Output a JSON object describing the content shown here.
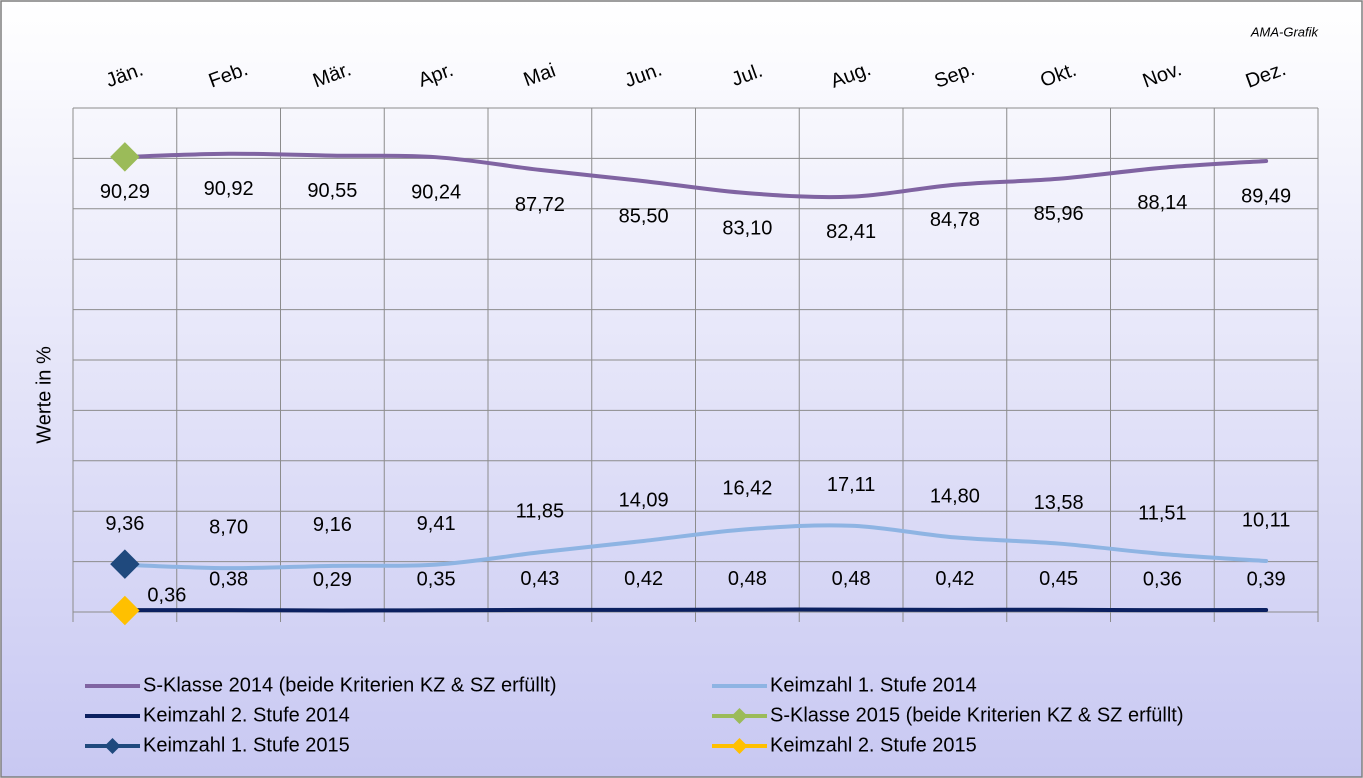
{
  "chart_data": {
    "type": "line",
    "source": "AMA-Grafik",
    "y_label": "Werte in %",
    "categories": [
      "Jän.",
      "Feb.",
      "Mär.",
      "Apr.",
      "Mai",
      "Jun.",
      "Jul.",
      "Aug.",
      "Sep.",
      "Okt.",
      "Nov.",
      "Dez."
    ],
    "series": [
      {
        "name": "S-Klasse 2014 (beide Kriterien KZ & SZ erfüllt)",
        "color": "#8064a2",
        "values": [
          90.29,
          90.92,
          90.55,
          90.24,
          87.72,
          85.5,
          83.1,
          82.41,
          84.78,
          85.96,
          88.14,
          89.49
        ],
        "value_labels": [
          "90,29",
          "90,92",
          "90,55",
          "90,24",
          "87,72",
          "85,50",
          "83,10",
          "82,41",
          "84,78",
          "85,96",
          "88,14",
          "89,49"
        ]
      },
      {
        "name": "Keimzahl 1. Stufe 2014",
        "color": "#8eb4e3",
        "values": [
          9.36,
          8.7,
          9.16,
          9.41,
          11.85,
          14.09,
          16.42,
          17.11,
          14.8,
          13.58,
          11.51,
          10.11
        ],
        "value_labels": [
          "9,36",
          "8,70",
          "9,16",
          "9,41",
          "11,85",
          "14,09",
          "16,42",
          "17,11",
          "14,80",
          "13,58",
          "11,51",
          "10,11"
        ]
      },
      {
        "name": "Keimzahl 2. Stufe 2014",
        "color": "#0b2060",
        "values": [
          0.36,
          0.38,
          0.29,
          0.35,
          0.43,
          0.42,
          0.48,
          0.48,
          0.42,
          0.45,
          0.36,
          0.39
        ],
        "value_labels": [
          "0,36",
          "0,38",
          "0,29",
          "0,35",
          "0,43",
          "0,42",
          "0,48",
          "0,48",
          "0,42",
          "0,45",
          "0,36",
          "0,39"
        ]
      },
      {
        "name": "S-Klasse 2015 (beide Kriterien KZ & SZ erfüllt)",
        "color": "#9bbb59",
        "marker": "diamond",
        "values": [
          90.3,
          null,
          null,
          null,
          null,
          null,
          null,
          null,
          null,
          null,
          null,
          null
        ]
      },
      {
        "name": "Keimzahl 1. Stufe 2015",
        "color": "#1f497d",
        "marker": "diamond",
        "values": [
          9.5,
          null,
          null,
          null,
          null,
          null,
          null,
          null,
          null,
          null,
          null,
          null
        ]
      },
      {
        "name": "Keimzahl 2. Stufe 2015",
        "color": "#ffc000",
        "marker": "diamond",
        "values": [
          0.3,
          null,
          null,
          null,
          null,
          null,
          null,
          null,
          null,
          null,
          null,
          null
        ]
      }
    ],
    "ylim": [
      0,
      100
    ],
    "yticks": [
      0,
      10,
      20,
      30,
      40,
      50,
      60,
      70,
      80,
      90,
      100
    ],
    "grid": true,
    "smooth": true,
    "legend": "bottom"
  }
}
